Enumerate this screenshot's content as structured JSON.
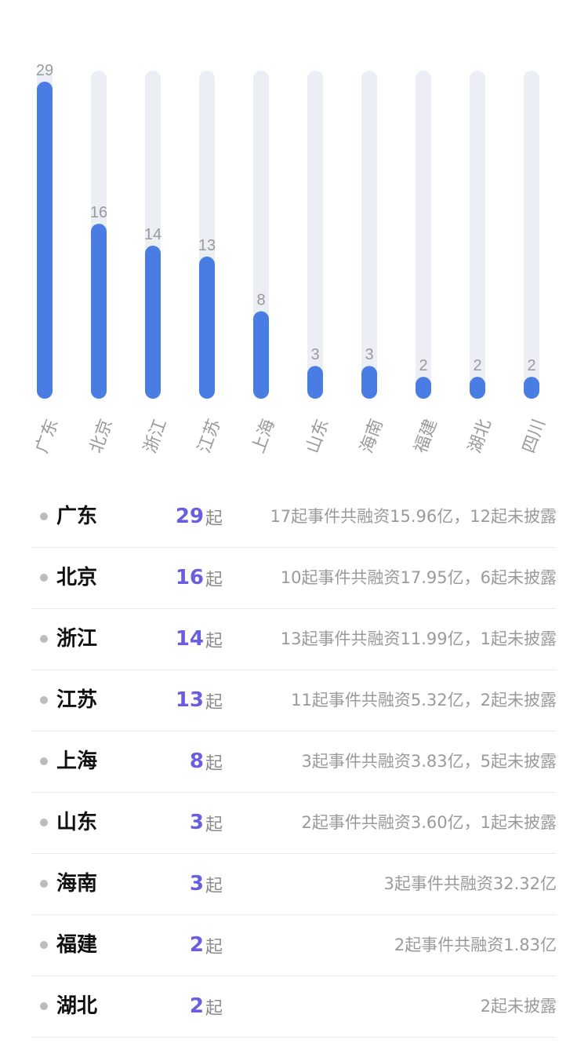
{
  "chart_data": {
    "type": "bar",
    "categories": [
      "广东",
      "北京",
      "浙江",
      "江苏",
      "上海",
      "山东",
      "海南",
      "福建",
      "湖北",
      "四川"
    ],
    "values": [
      29,
      16,
      14,
      13,
      8,
      3,
      3,
      2,
      2,
      2
    ],
    "ylim": [
      0,
      29
    ],
    "grid": false,
    "colors": {
      "bar": "#4a7de3",
      "track": "#eceef5",
      "value_label": "#9a9a9a",
      "category_label": "#9a9a9a"
    }
  },
  "list": {
    "unit": "起",
    "rows": [
      {
        "name": "广东",
        "count": "29",
        "desc": "17起事件共融资15.96亿，12起未披露"
      },
      {
        "name": "北京",
        "count": "16",
        "desc": "10起事件共融资17.95亿，6起未披露"
      },
      {
        "name": "浙江",
        "count": "14",
        "desc": "13起事件共融资11.99亿，1起未披露"
      },
      {
        "name": "江苏",
        "count": "13",
        "desc": "11起事件共融资5.32亿，2起未披露"
      },
      {
        "name": "上海",
        "count": "8",
        "desc": "3起事件共融资3.83亿，5起未披露"
      },
      {
        "name": "山东",
        "count": "3",
        "desc": "2起事件共融资3.60亿，1起未披露"
      },
      {
        "name": "海南",
        "count": "3",
        "desc": "3起事件共融资32.32亿"
      },
      {
        "name": "福建",
        "count": "2",
        "desc": "2起事件共融资1.83亿"
      },
      {
        "name": "湖北",
        "count": "2",
        "desc": "2起未披露"
      }
    ]
  }
}
